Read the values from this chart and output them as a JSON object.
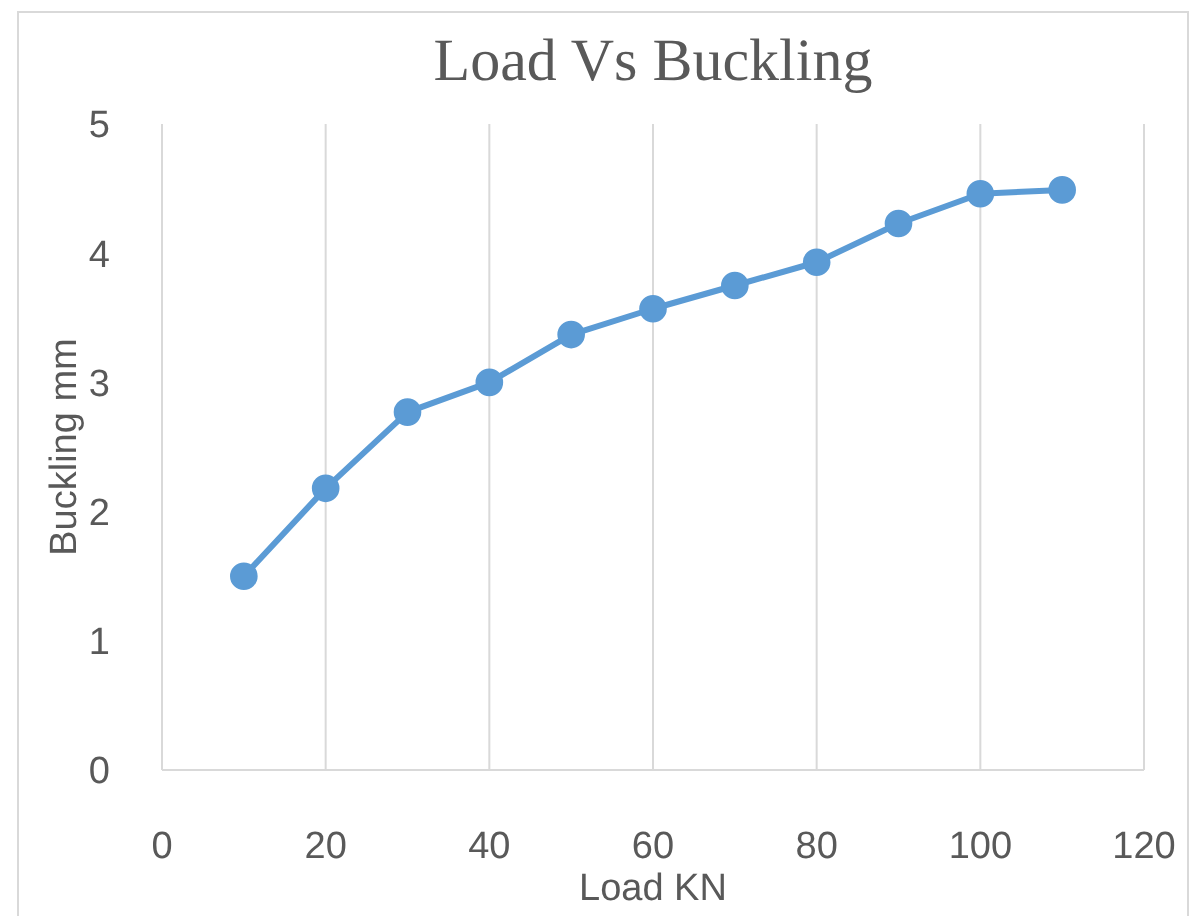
{
  "chart_data": {
    "type": "line",
    "title": "Load Vs Buckling",
    "xlabel": "Load KN",
    "ylabel": "Buckling mm",
    "x": [
      10,
      20,
      30,
      40,
      50,
      60,
      70,
      80,
      90,
      100,
      110
    ],
    "series": [
      {
        "color": "#5b9bd5",
        "values": [
          1.5,
          2.18,
          2.77,
          3.0,
          3.37,
          3.57,
          3.75,
          3.93,
          4.23,
          4.46,
          4.49
        ]
      }
    ],
    "xlim": [
      0,
      120
    ],
    "xticks": [
      0,
      20,
      40,
      60,
      80,
      100,
      120
    ],
    "ylim": [
      0,
      5
    ],
    "yticks": [
      0,
      1,
      2,
      3,
      4,
      5
    ],
    "grid": "x",
    "marker": "circle",
    "line_style": "solid"
  }
}
